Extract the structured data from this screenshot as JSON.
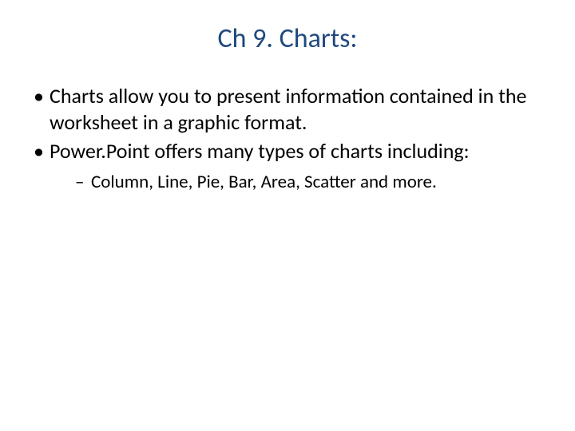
{
  "slide": {
    "title": "Ch 9. Charts:",
    "title_color": "#1f497d",
    "title_fontsize": 34,
    "body_color": "#000000",
    "body_fontsize": 26,
    "sub_fontsize": 23,
    "background_color": "#ffffff",
    "bullets": [
      {
        "text": "Charts allow you to present information contained in the worksheet in a graphic format."
      },
      {
        "text": " Power.Point offers many types of charts including:",
        "sub": [
          "Column, Line, Pie, Bar, Area, Scatter and more."
        ]
      }
    ]
  }
}
